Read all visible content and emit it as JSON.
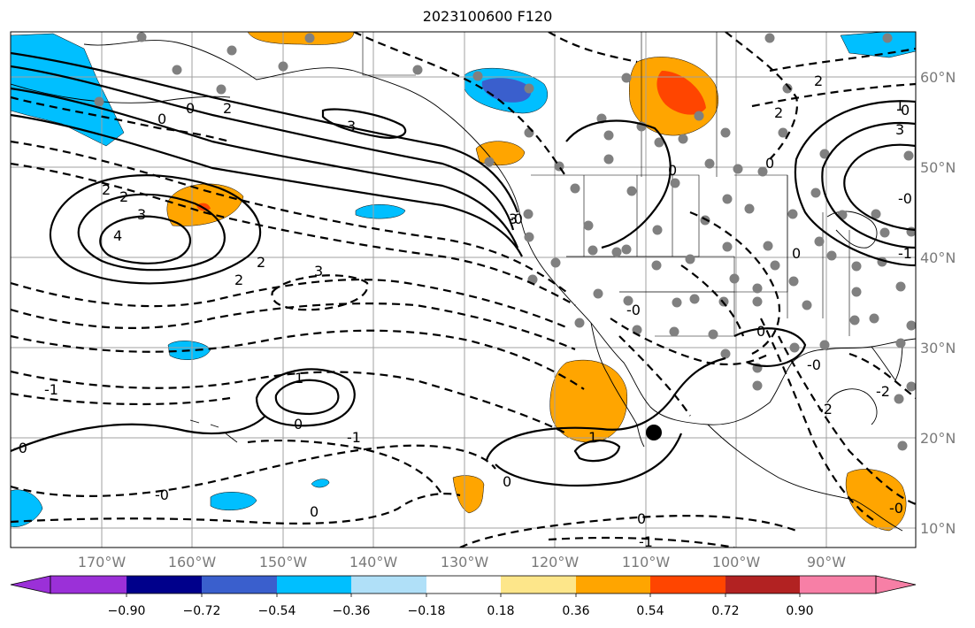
{
  "title": "2023100600 F120",
  "lat_labels": [
    "60°N",
    "50°N",
    "40°N",
    "30°N",
    "20°N",
    "10°N"
  ],
  "lon_labels": [
    "170°W",
    "160°W",
    "150°W",
    "140°W",
    "130°W",
    "120°W",
    "110°W",
    "100°W",
    "90°W"
  ],
  "colorbar": {
    "ticks": [
      "−0.90",
      "−0.72",
      "−0.54",
      "−0.36",
      "−0.18",
      "0.18",
      "0.36",
      "0.54",
      "0.72",
      "0.90"
    ],
    "colors": [
      "#9b30d8",
      "#00008b",
      "#3a5fcd",
      "#00bfff",
      "#b0e0f8",
      "#ffffff",
      "#fde68a",
      "#ffa500",
      "#ff4500",
      "#b22222",
      "#f77fa6"
    ]
  },
  "contour_labels": [
    "2",
    "2",
    "3",
    "4",
    "2",
    "2",
    "3",
    "3",
    "0",
    "0",
    "1",
    "0",
    "-1",
    "-0",
    "-1",
    "0",
    "-0",
    "0",
    "1",
    "0",
    "-1",
    "-0",
    "2",
    "3",
    "0",
    "-0",
    "0",
    "2",
    "0",
    "2",
    "3",
    "0",
    "-2",
    "-0",
    "-2",
    "-0",
    "0",
    "-1",
    "1",
    "-0"
  ],
  "map_colors": {
    "positive": "#ffa500",
    "positive_strong": "#ff4500",
    "negative": "#00bfff",
    "negative_strong": "#3a5fcd",
    "station_dot": "#808080",
    "marker": "#000000"
  }
}
